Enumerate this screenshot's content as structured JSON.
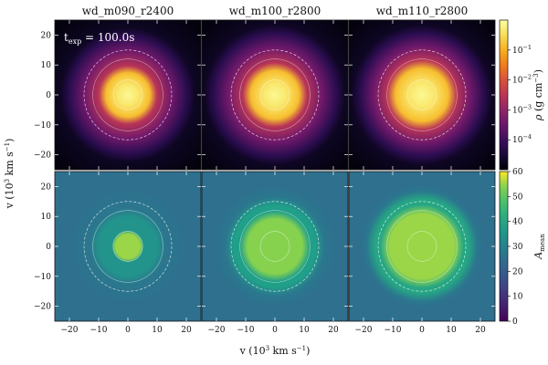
{
  "chart_data": {
    "type": "heatmap",
    "panel_titles": [
      "wd_m090_r2400",
      "wd_m100_r2800",
      "wd_m110_r2800"
    ],
    "annotation": {
      "base": "t",
      "sub": "exp",
      "rest": " = 100.0s"
    },
    "xlabel": {
      "pre": "v (10",
      "sup": "3",
      "post": " km s",
      "sup2": "−1",
      "end": ")"
    },
    "ylabel": {
      "pre": "v (10",
      "sup": "3",
      "post": " km s",
      "sup2": "−1",
      "end": ")"
    },
    "xlim": [
      -25,
      25
    ],
    "ylim": [
      -25,
      25
    ],
    "x_ticks": [
      -20,
      -10,
      0,
      10,
      20
    ],
    "x_tick_labels": [
      "−20",
      "−10",
      "0",
      "10",
      "20"
    ],
    "y_ticks": [
      -20,
      -10,
      0,
      10,
      20
    ],
    "y_tick_labels": [
      "−20",
      "−10",
      "0",
      "10",
      "20"
    ],
    "rows": [
      {
        "quantity": "density",
        "colormap": "inferno",
        "log_scale": true,
        "colorbar": {
          "label": {
            "base": "ρ",
            "rest": " (g cm",
            "sup": "−3",
            "end": ")"
          },
          "range": [
            1e-05,
            1
          ],
          "ticks": [
            0.0001,
            0.001,
            0.01,
            0.1
          ],
          "tick_labels": [
            {
              "base": "10",
              "exp": "−4"
            },
            {
              "base": "10",
              "exp": "−3"
            },
            {
              "base": "10",
              "exp": "−2"
            },
            {
              "base": "10",
              "exp": "−1"
            }
          ]
        }
      },
      {
        "quantity": "mean atomic mass",
        "colormap": "viridis",
        "log_scale": false,
        "colorbar": {
          "label": {
            "base": "A",
            "sub": "mean"
          },
          "range": [
            0,
            60
          ],
          "ticks": [
            0,
            10,
            20,
            30,
            40,
            50,
            60
          ],
          "tick_labels": [
            "0",
            "10",
            "20",
            "30",
            "40",
            "50",
            "60"
          ]
        }
      }
    ],
    "contour_radii": [
      5,
      12,
      15
    ],
    "panels_estimated": [
      {
        "model": "wd_m090_r2400",
        "density_core_radius": 10,
        "ejecta_radius": 20,
        "Amean_core_radius": 5,
        "Amean_core_value": 55,
        "Amean_ring_radius": 10,
        "Amean_ring_value": 35,
        "Amean_outer_value": 25
      },
      {
        "model": "wd_m100_r2800",
        "density_core_radius": 11,
        "ejecta_radius": 21,
        "Amean_core_radius": 11,
        "Amean_core_value": 54,
        "Amean_ring_radius": 14,
        "Amean_ring_value": 38,
        "Amean_outer_value": 25
      },
      {
        "model": "wd_m110_r2800",
        "density_core_radius": 12,
        "ejecta_radius": 21,
        "Amean_core_radius": 13,
        "Amean_core_value": 55,
        "Amean_ring_radius": 16,
        "Amean_ring_value": 40,
        "Amean_outer_value": 25
      }
    ]
  }
}
